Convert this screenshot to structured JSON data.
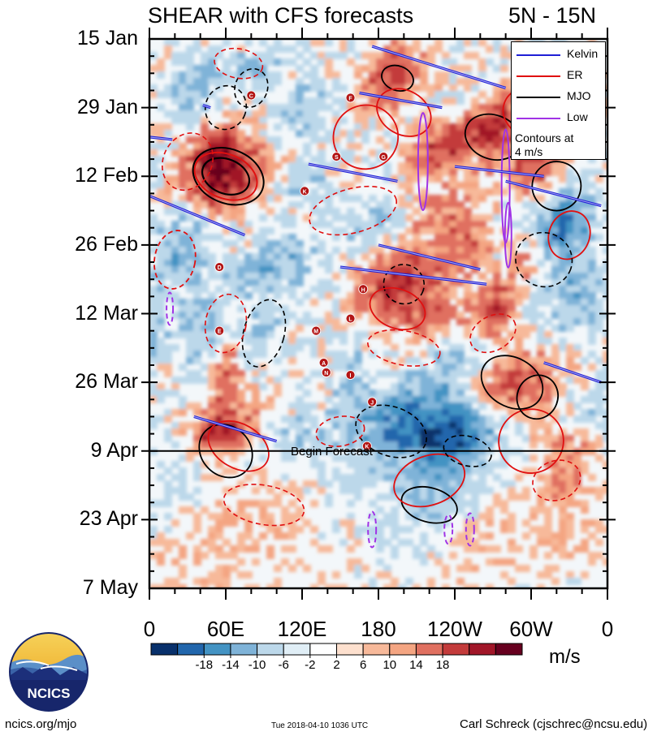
{
  "header": {
    "title": "SHEAR with CFS forecasts",
    "region": "5N - 15N"
  },
  "chart_data": {
    "type": "heatmap",
    "title": "SHEAR with CFS forecasts",
    "region": "5N - 15N",
    "x_ticks": [
      "0",
      "60E",
      "120E",
      "180",
      "120W",
      "60W",
      "0"
    ],
    "x_tick_values": [
      0,
      60,
      120,
      180,
      240,
      300,
      360
    ],
    "xlim": [
      0,
      360
    ],
    "y_ticks": [
      "15 Jan",
      "29 Jan",
      "12 Feb",
      "26 Feb",
      "12 Mar",
      "26 Mar",
      "9 Apr",
      "23 Apr",
      "7 May"
    ],
    "y_tick_days": [
      0,
      14,
      28,
      42,
      56,
      70,
      84,
      98,
      112
    ],
    "ylim_days": [
      0,
      112
    ],
    "forecast_start_day": 84,
    "forecast_label": "Begin Forecast",
    "colorbar": {
      "labels": [
        "-18",
        "-14",
        "-10",
        "-6",
        "-2",
        "2",
        "6",
        "10",
        "14",
        "18"
      ],
      "colors": [
        "#08306b",
        "#2166ac",
        "#4393c3",
        "#7fb3d8",
        "#bcd8ea",
        "#e0eef6",
        "#ffffff",
        "#fde0ce",
        "#f7b99a",
        "#f4a582",
        "#e07060",
        "#c33b3b",
        "#a11628",
        "#67001f"
      ],
      "units": "m/s"
    },
    "legend": {
      "position": "top-right",
      "entries": [
        {
          "label": "Kelvin",
          "color": "#1f1fd6"
        },
        {
          "label": "ER",
          "color": "#e01010"
        },
        {
          "label": "MJO",
          "color": "#000000"
        },
        {
          "label": "Low",
          "color": "#a033e6"
        }
      ],
      "note_line1": "Contours at",
      "note_line2": "4 m/s"
    },
    "storm_markers": [
      {
        "letter": "C",
        "lon": 80,
        "day": 11.5
      },
      {
        "letter": "F",
        "lon": 158,
        "day": 12
      },
      {
        "letter": "S",
        "lon": 147,
        "day": 24
      },
      {
        "letter": "G",
        "lon": 184,
        "day": 24
      },
      {
        "letter": "K",
        "lon": 122,
        "day": 31
      },
      {
        "letter": "D",
        "lon": 55,
        "day": 46.5
      },
      {
        "letter": "H",
        "lon": 168,
        "day": 51
      },
      {
        "letter": "L",
        "lon": 158,
        "day": 57
      },
      {
        "letter": "E",
        "lon": 55,
        "day": 59.5
      },
      {
        "letter": "M",
        "lon": 131,
        "day": 59.5
      },
      {
        "letter": "A",
        "lon": 137,
        "day": 66
      },
      {
        "letter": "N",
        "lon": 139,
        "day": 68
      },
      {
        "letter": "I",
        "lon": 158,
        "day": 68.5
      },
      {
        "letter": "J",
        "lon": 175,
        "day": 74
      },
      {
        "letter": "K",
        "lon": 171,
        "day": 83
      }
    ],
    "kelvin_paths": [
      [
        [
          0,
          20
        ],
        [
          18,
          20.5
        ]
      ],
      [
        [
          42,
          13.5
        ],
        [
          48,
          14
        ]
      ],
      [
        [
          175,
          1.5
        ],
        [
          280,
          10
        ]
      ],
      [
        [
          165,
          11
        ],
        [
          230,
          14
        ]
      ],
      [
        [
          125,
          25.5
        ],
        [
          195,
          29
        ]
      ],
      [
        [
          240,
          26
        ],
        [
          310,
          28
        ]
      ],
      [
        [
          0,
          32
        ],
        [
          75,
          40
        ]
      ],
      [
        [
          150,
          46.5
        ],
        [
          265,
          50
        ]
      ],
      [
        [
          180,
          42
        ],
        [
          260,
          47
        ]
      ],
      [
        [
          280,
          29
        ],
        [
          355,
          34
        ]
      ],
      [
        [
          310,
          66
        ],
        [
          355,
          70
        ]
      ],
      [
        [
          35,
          77
        ],
        [
          100,
          82
        ]
      ]
    ]
  },
  "logo": {
    "text": "NCICS"
  },
  "footer": {
    "website": "ncics.org/mjo",
    "timestamp": "Tue 2018-04-10 1036 UTC",
    "author": "Carl Schreck (cjschrec@ncsu.edu)"
  }
}
